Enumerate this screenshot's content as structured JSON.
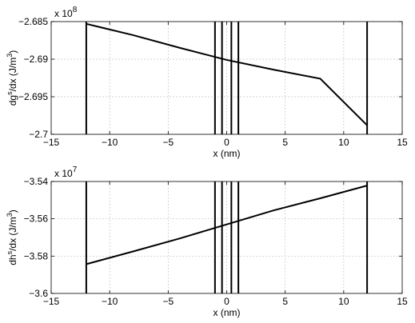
{
  "chart_data": [
    {
      "type": "line",
      "xlabel": "x (nm)",
      "ylabel_main": "dg",
      "ylabel_sup": "s",
      "ylabel_rest": "/dx (J/m",
      "ylabel_unit_sup": "3",
      "ylabel_close": ")",
      "exponent_base": "x 10",
      "exponent_power": "8",
      "xlim": [
        -15,
        15
      ],
      "ylim": [
        -2.7,
        -2.685
      ],
      "xticks": [
        -15,
        -10,
        -5,
        0,
        5,
        10,
        15
      ],
      "xtick_labels": [
        "−15",
        "−10",
        "−5",
        "0",
        "5",
        "10",
        "15"
      ],
      "yticks": [
        -2.7,
        -2.695,
        -2.69,
        -2.685
      ],
      "ytick_labels": [
        "−2.7",
        "−2.695",
        "−2.69",
        "−2.685"
      ],
      "grid": true,
      "series": [
        {
          "x": [
            -12,
            -8,
            -4,
            0,
            4,
            8,
            12
          ],
          "y": [
            -2.6853,
            -2.6868,
            -2.6885,
            -2.6901,
            -2.6914,
            -2.6926,
            -2.6988
          ]
        }
      ],
      "vertical_lines": [
        -12,
        -1,
        -0.4,
        0.4,
        1,
        12
      ]
    },
    {
      "type": "line",
      "xlabel": "x (nm)",
      "ylabel_main": "dh",
      "ylabel_sup": "s",
      "ylabel_rest": "/dx (J/m",
      "ylabel_unit_sup": "3",
      "ylabel_close": ")",
      "exponent_base": "x 10",
      "exponent_power": "7",
      "xlim": [
        -15,
        15
      ],
      "ylim": [
        -3.6,
        -3.54
      ],
      "xticks": [
        -15,
        -10,
        -5,
        0,
        5,
        10,
        15
      ],
      "xtick_labels": [
        "−15",
        "−10",
        "−5",
        "0",
        "5",
        "10",
        "15"
      ],
      "yticks": [
        -3.6,
        -3.58,
        -3.56,
        -3.54
      ],
      "ytick_labels": [
        "−3.6",
        "−3.58",
        "−3.56",
        "−3.54"
      ],
      "grid": true,
      "series": [
        {
          "x": [
            -12,
            -8,
            -4,
            0,
            4,
            8,
            12
          ],
          "y": [
            -3.5843,
            -3.5775,
            -3.5705,
            -3.563,
            -3.5555,
            -3.549,
            -3.5422
          ]
        }
      ],
      "vertical_lines": [
        -12,
        -1,
        -0.4,
        0.4,
        1,
        12
      ]
    }
  ]
}
